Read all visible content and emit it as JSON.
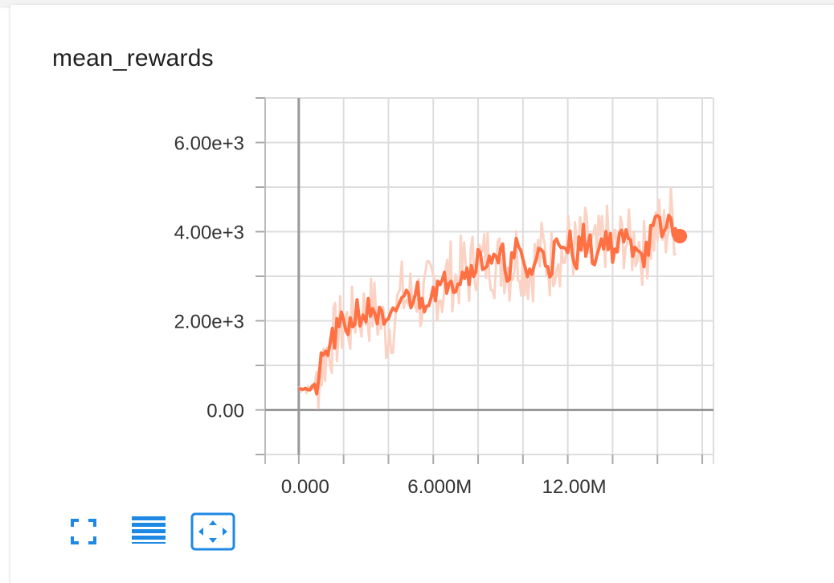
{
  "card": {
    "title": "mean_rewards"
  },
  "chart_data": {
    "type": "line",
    "title": "mean_rewards",
    "xlabel": "",
    "ylabel": "",
    "xlim": [
      -1500000,
      18500000
    ],
    "ylim": [
      -1000,
      7000
    ],
    "x_ticks": [
      0,
      6000000,
      12000000
    ],
    "x_tick_labels": [
      "0.000",
      "6.000M",
      "12.00M"
    ],
    "y_ticks": [
      0,
      2000,
      4000,
      6000
    ],
    "y_tick_labels": [
      "0.00",
      "2.00e+3",
      "4.00e+3",
      "6.00e+3"
    ],
    "grid": true,
    "series": [
      {
        "color": "#ff7043",
        "smoothed": true,
        "x": [
          0,
          200000,
          500000,
          800000,
          1100000,
          1400000,
          1700000,
          2000000,
          2300000,
          2600000,
          3000000,
          3300000,
          3600000,
          3900000,
          4200000,
          4600000,
          4900000,
          5200000,
          5500000,
          5800000,
          6100000,
          6400000,
          6700000,
          7000000,
          7300000,
          7600000,
          7900000,
          8200000,
          8500000,
          8800000,
          9100000,
          9400000,
          9700000,
          10000000,
          10300000,
          10600000,
          10900000,
          11200000,
          11500000,
          11800000,
          12100000,
          12400000,
          12700000,
          13000000,
          13300000,
          13600000,
          13900000,
          14200000,
          14500000,
          14800000,
          15100000,
          15400000,
          15700000,
          16000000,
          16300000,
          16600000,
          16900000
        ],
        "y": [
          500,
          480,
          450,
          600,
          1100,
          1500,
          1700,
          1950,
          1900,
          2250,
          2150,
          2300,
          2050,
          1750,
          2000,
          2600,
          2450,
          2700,
          2400,
          2650,
          2800,
          2650,
          3100,
          2900,
          3200,
          3050,
          3450,
          3300,
          3500,
          3200,
          3400,
          3150,
          3550,
          3300,
          3050,
          3400,
          3550,
          3250,
          3650,
          3400,
          3800,
          3500,
          3850,
          3600,
          3450,
          3950,
          3700,
          3550,
          3900,
          3650,
          3800,
          3500,
          3900,
          4100,
          3950,
          4350,
          3950
        ]
      }
    ],
    "last_point": {
      "x": 17000000,
      "y": 3900
    },
    "colors": {
      "line": "#ff7043",
      "raw_line": "#fbd3c5",
      "grid": "#dddddd",
      "axis": "#999999"
    }
  },
  "toolbar": [
    {
      "name": "fullscreen",
      "icon": "fullscreen-icon",
      "color": "#1e88e5"
    },
    {
      "name": "toggle-y-log",
      "icon": "list-lines-icon",
      "color": "#1e88e5"
    },
    {
      "name": "fit-domain",
      "icon": "fit-domain-icon",
      "color": "#1e88e5"
    }
  ]
}
